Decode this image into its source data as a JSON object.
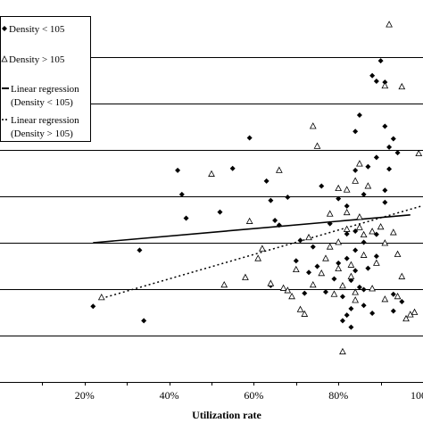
{
  "chart_data": {
    "type": "scatter",
    "xlabel": "Utilization rate",
    "ylabel": "",
    "xlim": [
      0.0,
      1.0
    ],
    "ylim": [
      0,
      8
    ],
    "x_ticks": [
      "20%",
      "40%",
      "60%",
      "80%",
      "100%"
    ],
    "x_tick_values": [
      0.2,
      0.4,
      0.6,
      0.8,
      1.0
    ],
    "grid": "horizontal",
    "legend_position": "top-left",
    "legend": [
      {
        "label": "Density < 105",
        "marker": "diamond-filled"
      },
      {
        "label": "Density > 105",
        "marker": "triangle-open"
      },
      {
        "label": "Linear regression (Density < 105)",
        "line1": "Linear regression",
        "line2": "(Density < 105)",
        "style": "solid"
      },
      {
        "label": "Linear regression (Density > 105)",
        "line1": "Linear regression",
        "line2": "(Density > 105)",
        "style": "dotted"
      }
    ],
    "series": [
      {
        "name": "Density < 105",
        "marker": "diamond-filled",
        "points": [
          [
            0.22,
            1.63
          ],
          [
            0.33,
            2.84
          ],
          [
            0.34,
            1.32
          ],
          [
            0.42,
            4.56
          ],
          [
            0.43,
            4.04
          ],
          [
            0.44,
            3.53
          ],
          [
            0.52,
            3.66
          ],
          [
            0.55,
            4.6
          ],
          [
            0.59,
            5.26
          ],
          [
            0.63,
            4.33
          ],
          [
            0.64,
            3.91
          ],
          [
            0.64,
            2.08
          ],
          [
            0.65,
            3.48
          ],
          [
            0.66,
            3.38
          ],
          [
            0.68,
            3.98
          ],
          [
            0.7,
            2.61
          ],
          [
            0.71,
            3.05
          ],
          [
            0.72,
            1.91
          ],
          [
            0.73,
            2.36
          ],
          [
            0.74,
            2.91
          ],
          [
            0.75,
            2.49
          ],
          [
            0.76,
            4.22
          ],
          [
            0.77,
            1.94
          ],
          [
            0.78,
            3.41
          ],
          [
            0.79,
            2.22
          ],
          [
            0.8,
            3.95
          ],
          [
            0.8,
            2.56
          ],
          [
            0.81,
            1.84
          ],
          [
            0.81,
            1.32
          ],
          [
            0.82,
            3.79
          ],
          [
            0.82,
            3.19
          ],
          [
            0.82,
            2.66
          ],
          [
            0.82,
            1.44
          ],
          [
            0.83,
            2.19
          ],
          [
            0.83,
            1.58
          ],
          [
            0.83,
            1.18
          ],
          [
            0.84,
            5.4
          ],
          [
            0.84,
            4.56
          ],
          [
            0.84,
            3.25
          ],
          [
            0.84,
            2.84
          ],
          [
            0.84,
            2.4
          ],
          [
            0.85,
            5.75
          ],
          [
            0.85,
            2.04
          ],
          [
            0.86,
            4.04
          ],
          [
            0.86,
            3.01
          ],
          [
            0.86,
            1.99
          ],
          [
            0.86,
            1.65
          ],
          [
            0.87,
            4.64
          ],
          [
            0.87,
            2.45
          ],
          [
            0.88,
            6.6
          ],
          [
            0.88,
            1.48
          ],
          [
            0.89,
            6.48
          ],
          [
            0.89,
            4.84
          ],
          [
            0.89,
            2.71
          ],
          [
            0.9,
            6.92
          ],
          [
            0.91,
            6.46
          ],
          [
            0.91,
            5.51
          ],
          [
            0.91,
            4.13
          ],
          [
            0.92,
            5.06
          ],
          [
            0.92,
            4.59
          ],
          [
            0.93,
            5.24
          ],
          [
            0.93,
            1.53
          ],
          [
            0.93,
            1.89
          ],
          [
            0.94,
            4.94
          ],
          [
            0.95,
            1.73
          ],
          [
            0.91,
            3.87
          ],
          [
            0.89,
            3.18
          ]
        ]
      },
      {
        "name": "Density > 105",
        "marker": "triangle-open",
        "points": [
          [
            0.24,
            1.82
          ],
          [
            0.5,
            4.48
          ],
          [
            0.53,
            2.09
          ],
          [
            0.58,
            2.25
          ],
          [
            0.59,
            3.46
          ],
          [
            0.61,
            2.66
          ],
          [
            0.62,
            2.87
          ],
          [
            0.64,
            2.12
          ],
          [
            0.66,
            4.56
          ],
          [
            0.67,
            2.02
          ],
          [
            0.68,
            1.97
          ],
          [
            0.69,
            1.84
          ],
          [
            0.7,
            2.42
          ],
          [
            0.71,
            1.56
          ],
          [
            0.72,
            1.46
          ],
          [
            0.73,
            3.11
          ],
          [
            0.74,
            5.51
          ],
          [
            0.74,
            2.09
          ],
          [
            0.75,
            5.08
          ],
          [
            0.76,
            2.34
          ],
          [
            0.77,
            2.66
          ],
          [
            0.78,
            3.62
          ],
          [
            0.78,
            2.91
          ],
          [
            0.79,
            1.89
          ],
          [
            0.8,
            4.17
          ],
          [
            0.8,
            3.01
          ],
          [
            0.81,
            2.07
          ],
          [
            0.81,
            0.65
          ],
          [
            0.82,
            4.14
          ],
          [
            0.82,
            3.65
          ],
          [
            0.82,
            3.29
          ],
          [
            0.83,
            2.52
          ],
          [
            0.83,
            2.27
          ],
          [
            0.84,
            4.33
          ],
          [
            0.84,
            1.93
          ],
          [
            0.85,
            4.7
          ],
          [
            0.85,
            3.55
          ],
          [
            0.85,
            3.33
          ],
          [
            0.86,
            3.17
          ],
          [
            0.86,
            2.73
          ],
          [
            0.87,
            4.22
          ],
          [
            0.88,
            3.24
          ],
          [
            0.88,
            2.01
          ],
          [
            0.89,
            2.56
          ],
          [
            0.9,
            3.34
          ],
          [
            0.91,
            6.38
          ],
          [
            0.91,
            2.99
          ],
          [
            0.91,
            1.78
          ],
          [
            0.92,
            7.7
          ],
          [
            0.93,
            3.22
          ],
          [
            0.94,
            2.75
          ],
          [
            0.94,
            1.84
          ],
          [
            0.95,
            6.36
          ],
          [
            0.95,
            2.27
          ],
          [
            0.96,
            1.36
          ],
          [
            0.97,
            1.45
          ],
          [
            0.98,
            1.5
          ],
          [
            0.99,
            4.92
          ],
          [
            0.8,
            2.44
          ],
          [
            0.84,
            1.76
          ]
        ]
      }
    ],
    "regressions": [
      {
        "name": "Linear regression (Density < 105)",
        "style": "solid",
        "from": [
          0.22,
          3.0
        ],
        "to": [
          0.97,
          3.6
        ]
      },
      {
        "name": "Linear regression (Density > 105)",
        "style": "dotted",
        "from": [
          0.24,
          1.8
        ],
        "to": [
          1.0,
          3.8
        ]
      }
    ]
  }
}
